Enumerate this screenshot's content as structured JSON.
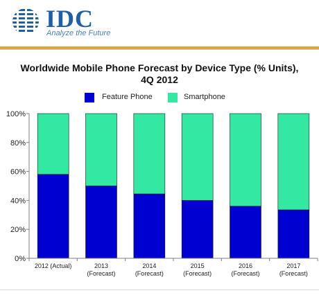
{
  "header": {
    "logo_text": "IDC",
    "tagline": "Analyze the Future"
  },
  "colors": {
    "feature_phone": "#0000d0",
    "smartphone": "#33e8a0",
    "logo_blue": "#1f5ea8",
    "accent_rule": "#e4a23a"
  },
  "chart_data": {
    "type": "bar",
    "stacked": true,
    "title_lines": [
      "Worldwide Mobile Phone Forecast by Device Type (% Units),",
      "4Q 2012"
    ],
    "categories": [
      [
        "2012 (Actual)"
      ],
      [
        "2013",
        "(Forecast)"
      ],
      [
        "2014",
        "(Forecast)"
      ],
      [
        "2015",
        "(Forecast)"
      ],
      [
        "2016",
        "(Forecast)"
      ],
      [
        "2017",
        "(Forecast)"
      ]
    ],
    "series": [
      {
        "name": "Feature Phone",
        "values": [
          58,
          50,
          44.5,
          40,
          36,
          33.5
        ]
      },
      {
        "name": "Smartphone",
        "values": [
          42,
          50,
          55.5,
          60,
          64,
          66.5
        ]
      }
    ],
    "yticks": [
      "0%",
      "20%",
      "40%",
      "60%",
      "80%",
      "100%"
    ],
    "ylim": [
      0,
      100
    ],
    "legend_position": "top-center",
    "grid": false
  }
}
